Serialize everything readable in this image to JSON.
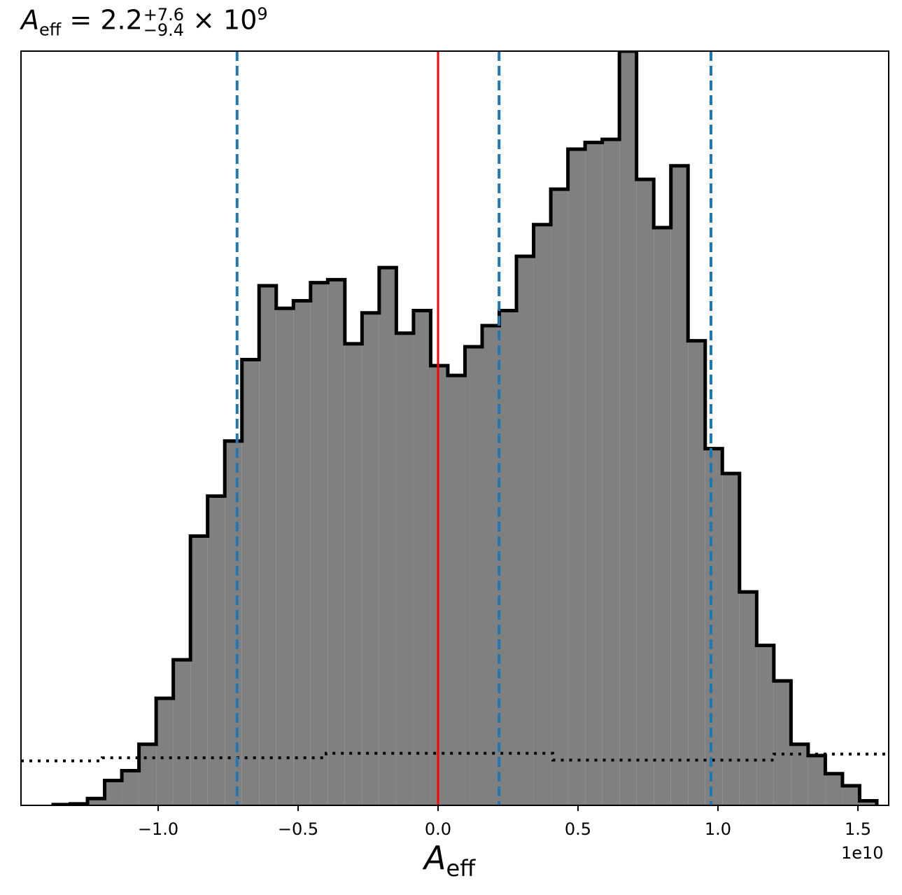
{
  "chart_data": {
    "type": "histogram",
    "title": {
      "symbol": "A",
      "subscript": "eff",
      "equals": "= 2.2",
      "upper": "+7.6",
      "lower": "−9.4",
      "multiplier": "× 10",
      "exponent": "9"
    },
    "xlabel": {
      "symbol": "A",
      "subscript": "eff"
    },
    "ylabel": "",
    "x_offset_label": "1e10",
    "x_unit_scale": 10000000000.0,
    "xlim": [
      -1.49,
      1.61
    ],
    "ylim": [
      0,
      1
    ],
    "x_ticks": [
      -1.0,
      -0.5,
      0.0,
      0.5,
      1.0,
      1.5
    ],
    "x_tick_labels": [
      "−1.0",
      "−0.5",
      "0.0",
      "0.5",
      "1.0",
      "1.5"
    ],
    "show_y_ticks": false,
    "grid": false,
    "histogram": {
      "color_fill": "#808080",
      "color_edge": "#000000",
      "bin_edges": [
        -1.375,
        -1.3137,
        -1.2524,
        -1.1911,
        -1.1298,
        -1.0685,
        -1.0072,
        -0.9459,
        -0.8846,
        -0.8233,
        -0.762,
        -0.7007,
        -0.6394,
        -0.5781,
        -0.5168,
        -0.4555,
        -0.3942,
        -0.3329,
        -0.2716,
        -0.2103,
        -0.149,
        -0.0877,
        -0.0264,
        0.0349,
        0.0962,
        0.1575,
        0.2188,
        0.2801,
        0.3414,
        0.4027,
        0.464,
        0.5253,
        0.5866,
        0.6479,
        0.7092,
        0.7705,
        0.8318,
        0.8931,
        0.9544,
        1.0157,
        1.077,
        1.1383,
        1.1996,
        1.2609,
        1.3222,
        1.3835,
        1.4448,
        1.5061,
        1.5674
      ],
      "values": [
        0.001,
        0.002,
        0.009,
        0.033,
        0.046,
        0.081,
        0.142,
        0.193,
        0.357,
        0.41,
        0.483,
        0.591,
        0.689,
        0.659,
        0.669,
        0.693,
        0.697,
        0.612,
        0.653,
        0.713,
        0.626,
        0.656,
        0.583,
        0.57,
        0.608,
        0.636,
        0.656,
        0.728,
        0.77,
        0.817,
        0.87,
        0.879,
        0.883,
        1.0,
        0.83,
        0.766,
        0.848,
        0.616,
        0.473,
        0.44,
        0.283,
        0.212,
        0.165,
        0.081,
        0.066,
        0.042,
        0.026,
        0.006
      ]
    },
    "prior": {
      "style": "dotted",
      "color": "#000000",
      "bin_edges": [
        -1.49,
        -1.2,
        -0.4,
        0.41,
        1.2,
        1.61
      ],
      "values": [
        0.059,
        0.063,
        0.069,
        0.06,
        0.068
      ]
    },
    "vlines": [
      {
        "x": -0.718,
        "color": "#1f77b4",
        "style": "dashed"
      },
      {
        "x": 0.0,
        "color": "#ff0000",
        "style": "solid"
      },
      {
        "x": 0.218,
        "color": "#1f77b4",
        "style": "dashed"
      },
      {
        "x": 0.975,
        "color": "#1f77b4",
        "style": "dashed"
      }
    ]
  }
}
